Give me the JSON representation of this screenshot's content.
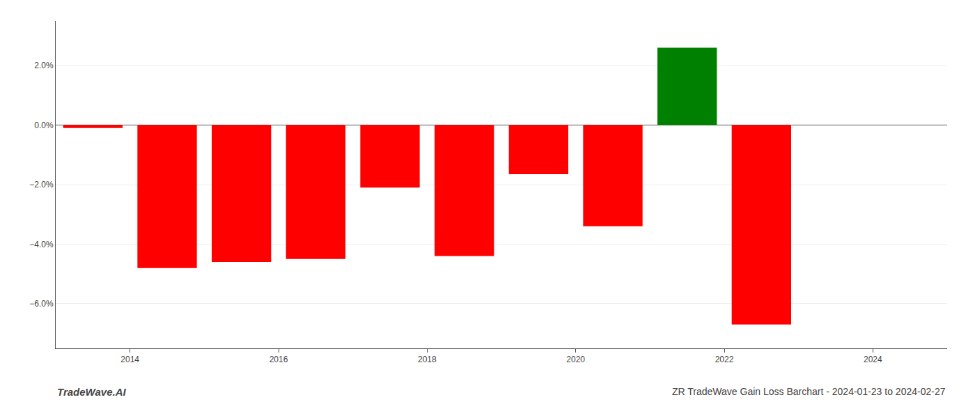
{
  "chart_data": {
    "type": "bar",
    "x": [
      2013.5,
      2014.5,
      2015.5,
      2016.5,
      2017.5,
      2018.5,
      2019.5,
      2020.5,
      2021.5,
      2022.5
    ],
    "values": [
      -0.1,
      -4.8,
      -4.6,
      -4.5,
      -2.1,
      -4.4,
      -1.65,
      -3.4,
      2.6,
      -6.7
    ],
    "colors": [
      "#ff0000",
      "#ff0000",
      "#ff0000",
      "#ff0000",
      "#ff0000",
      "#ff0000",
      "#ff0000",
      "#ff0000",
      "#008000",
      "#ff0000"
    ],
    "xlim": [
      2013.0,
      2025.0
    ],
    "xticks": [
      2014,
      2016,
      2018,
      2020,
      2022,
      2024
    ],
    "ylim": [
      -7.5,
      3.5
    ],
    "yticks": [
      {
        "value": 2.0,
        "label": "2.0%"
      },
      {
        "value": 0.0,
        "label": "0.0%"
      },
      {
        "value": -2.0,
        "label": "−2.0%"
      },
      {
        "value": -4.0,
        "label": "−4.0%"
      },
      {
        "value": -6.0,
        "label": "−6.0%"
      }
    ],
    "grid": true,
    "annotations": [
      "TradeWave.AI",
      "ZR TradeWave Gain Loss Barchart - 2024-01-23 to 2024-02-27"
    ]
  }
}
